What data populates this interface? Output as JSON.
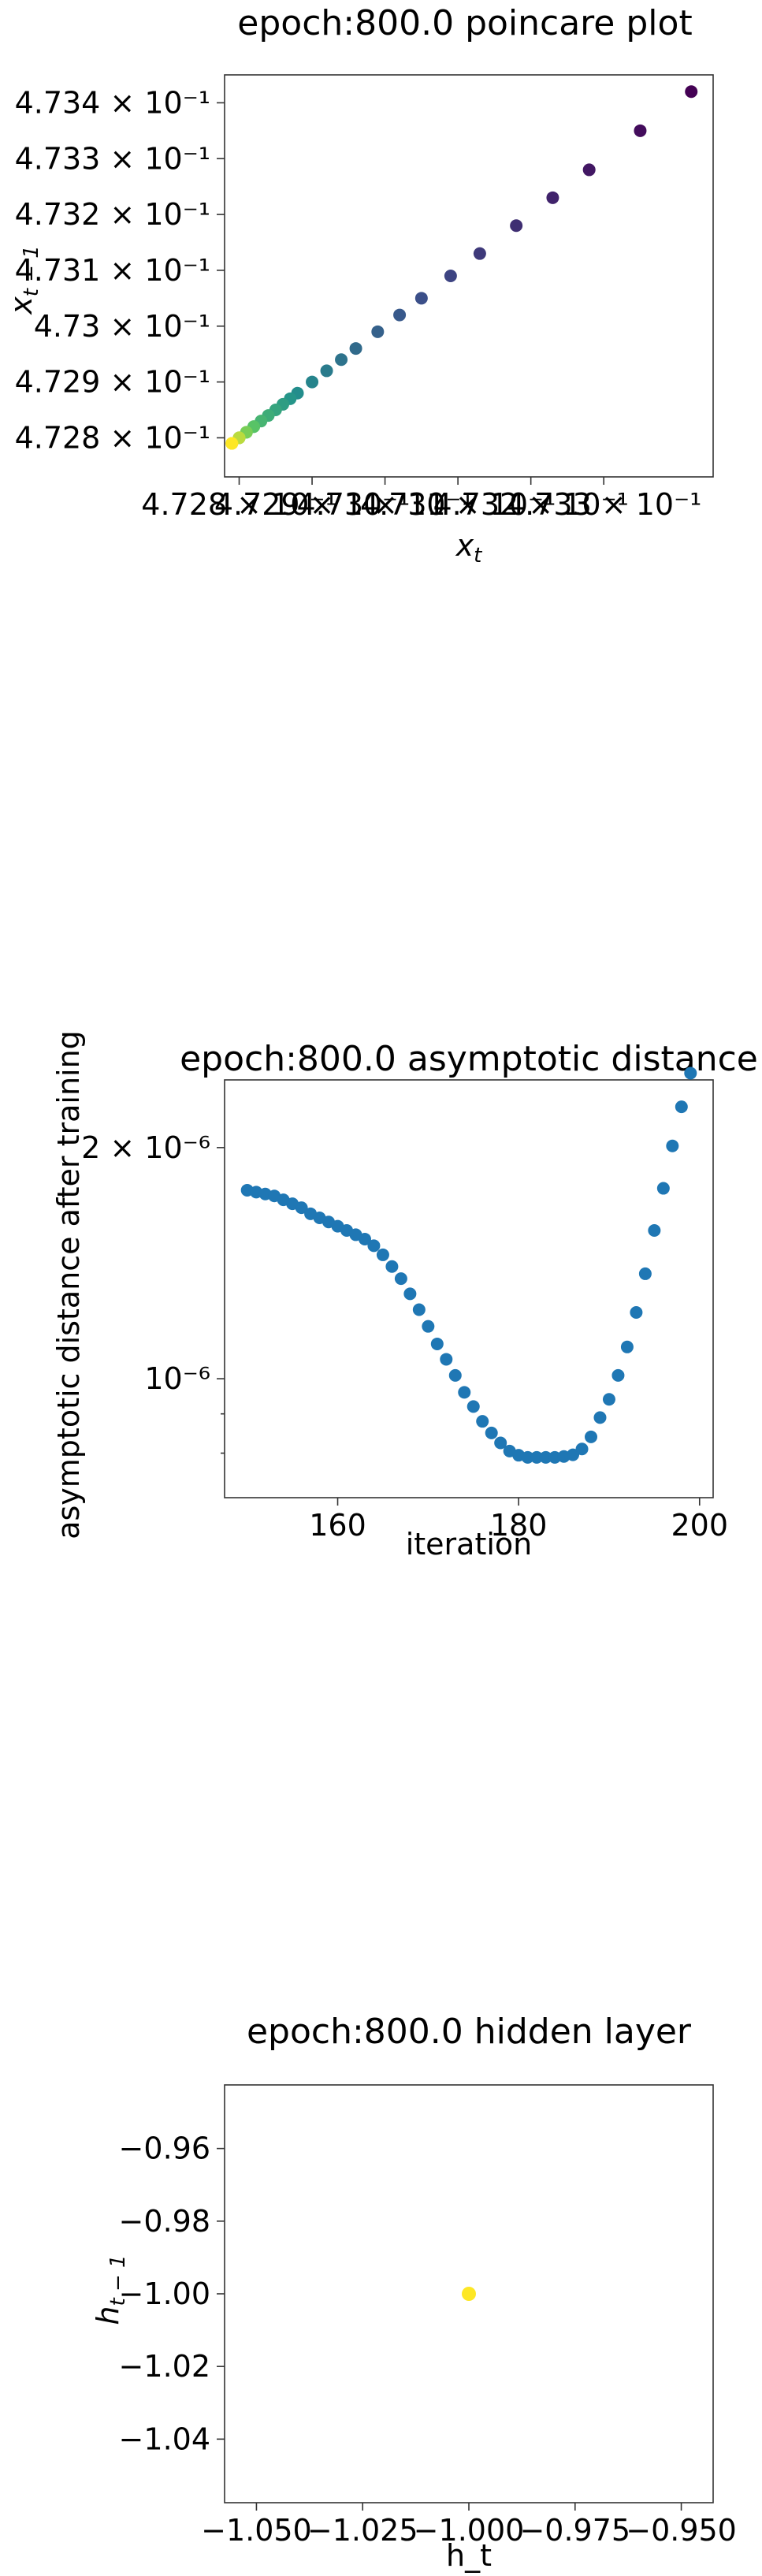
{
  "chart_data": [
    {
      "type": "scatter",
      "title": "epoch:800.0 poincare plot",
      "xlabel": "x_t",
      "ylabel": "x_{t-1}",
      "scale": "log",
      "colormap": "viridis",
      "x": [
        0.47342,
        0.47335,
        0.47328,
        0.47323,
        0.47318,
        0.47313,
        0.47309,
        0.47305,
        0.47302,
        0.47299,
        0.47296,
        0.47294,
        0.47292,
        0.4729,
        0.47288,
        0.47287,
        0.47286,
        0.47285,
        0.47284,
        0.47283,
        0.47282,
        0.47282,
        0.47281,
        0.47281,
        0.4728,
        0.4728,
        0.4728,
        0.47279,
        0.47279,
        0.47279
      ],
      "y": [
        0.47342,
        0.47335,
        0.47328,
        0.47323,
        0.47318,
        0.47313,
        0.47309,
        0.47305,
        0.47302,
        0.47299,
        0.47296,
        0.47294,
        0.47292,
        0.4729,
        0.47288,
        0.47287,
        0.47286,
        0.47285,
        0.47284,
        0.47283,
        0.47282,
        0.47282,
        0.47281,
        0.47281,
        0.4728,
        0.4728,
        0.4728,
        0.47279,
        0.47279,
        0.47279
      ],
      "xticks": [
        "4.728 × 10⁻¹",
        "4.729 × 10⁻¹",
        "4.73 × 10⁻¹",
        "4.731 × 10⁻¹",
        "4.732 × 10⁻¹",
        "4.733 × 10⁻¹"
      ],
      "yticks": [
        "4.734 × 10⁻¹",
        "4.733 × 10⁻¹",
        "4.732 × 10⁻¹",
        "4.731 × 10⁻¹",
        "4.73 × 10⁻¹",
        "4.729 × 10⁻¹",
        "4.728 × 10⁻¹"
      ],
      "xlim": [
        0.47278,
        0.47345
      ],
      "ylim": [
        0.47273,
        0.47345
      ]
    },
    {
      "type": "scatter",
      "title": "epoch:800.0 asymptotic distance",
      "xlabel": "iteration",
      "ylabel": "asymptotic distance after training",
      "scale": "log-y",
      "color": "#1f77b4",
      "x": [
        150,
        151,
        152,
        153,
        154,
        155,
        156,
        157,
        158,
        159,
        160,
        161,
        162,
        163,
        164,
        165,
        166,
        167,
        168,
        169,
        170,
        171,
        172,
        173,
        174,
        175,
        176,
        177,
        178,
        179,
        180,
        181,
        182,
        183,
        184,
        185,
        186,
        187,
        188,
        189,
        190,
        191,
        192,
        193,
        194,
        195,
        196,
        197,
        198,
        199
      ],
      "y": [
        1.76e-06,
        1.75e-06,
        1.74e-06,
        1.73e-06,
        1.71e-06,
        1.69e-06,
        1.67e-06,
        1.64e-06,
        1.62e-06,
        1.6e-06,
        1.58e-06,
        1.56e-06,
        1.54e-06,
        1.52e-06,
        1.49e-06,
        1.45e-06,
        1.4e-06,
        1.35e-06,
        1.29e-06,
        1.23e-06,
        1.17e-06,
        1.11e-06,
        1.06e-06,
        1.01e-06,
        9.6e-07,
        9.2e-07,
        8.8e-07,
        8.5e-07,
        8.25e-07,
        8.05e-07,
        7.95e-07,
        7.9e-07,
        7.9e-07,
        7.9e-07,
        7.9e-07,
        7.92e-07,
        7.96e-07,
        8.1e-07,
        8.4e-07,
        8.9e-07,
        9.4e-07,
        1.01e-06,
        1.1e-06,
        1.22e-06,
        1.37e-06,
        1.56e-06,
        1.77e-06,
        2.01e-06,
        2.26e-06,
        2.5e-06
      ],
      "xticks": [
        "160",
        "180",
        "200"
      ],
      "yticks": [
        "2 × 10⁻⁶",
        "10⁻⁶"
      ],
      "xlim": [
        147.5,
        201.5
      ],
      "ylim": [
        7e-07,
        2.45e-06
      ]
    },
    {
      "type": "scatter",
      "title": "epoch:800.0 hidden layer",
      "xlabel": "h_t",
      "ylabel": "h_{t-1}",
      "color": "#fde725",
      "x": [
        -1.0
      ],
      "y": [
        -1.0
      ],
      "xticks": [
        "−1.050",
        "−1.025",
        "−1.000",
        "−0.975",
        "−0.950"
      ],
      "yticks": [
        "−0.96",
        "−0.98",
        "−1.00",
        "−1.02",
        "−1.04"
      ],
      "xlim": [
        -1.0575,
        -0.9425
      ],
      "ylim": [
        -1.0575,
        -0.9425
      ]
    }
  ]
}
